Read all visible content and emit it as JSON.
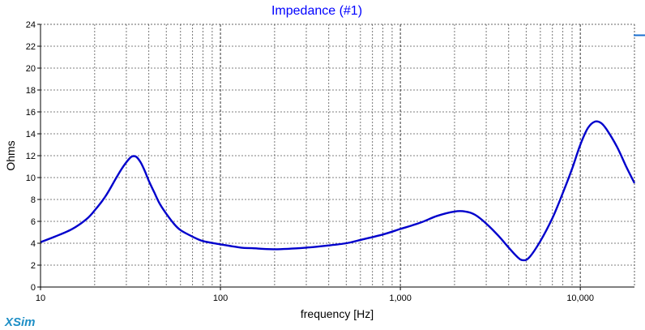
{
  "app": {
    "logo": "XSim"
  },
  "chart_data": {
    "type": "line",
    "title": "Impedance (#1)",
    "xlabel": "frequency [Hz]",
    "ylabel": "Ohms",
    "xscale": "log",
    "xlim": [
      10,
      20000
    ],
    "ylim": [
      0,
      24
    ],
    "grid": true,
    "x_ticks": [
      10,
      100,
      1000,
      10000
    ],
    "x_tick_labels": [
      "10",
      "100",
      "1,000",
      "10,000"
    ],
    "y_ticks": [
      0,
      2,
      4,
      6,
      8,
      10,
      12,
      14,
      16,
      18,
      20,
      22,
      24
    ],
    "y_tick_labels": [
      "0",
      "2",
      "4",
      "6",
      "8",
      "10",
      "12",
      "14",
      "16",
      "18",
      "20",
      "22",
      "24"
    ],
    "colors": {
      "title": "#0000ff",
      "series": "#0000cc",
      "grid": "#555555",
      "logo": "#1e8fc6"
    },
    "series": [
      {
        "x": [
          10,
          12,
          15,
          18,
          20,
          23,
          26,
          28,
          30,
          32,
          34,
          36,
          38,
          40,
          43,
          46,
          50,
          55,
          60,
          70,
          80,
          100,
          130,
          150,
          200,
          300,
          400,
          500,
          600,
          800,
          1000,
          1300,
          1600,
          2000,
          2300,
          2600,
          3000,
          3500,
          4000,
          4500,
          4800,
          5200,
          6000,
          7000,
          8000,
          9000,
          10000,
          11000,
          12000,
          13000,
          14000,
          16000,
          18000,
          20000
        ],
        "y": [
          4.1,
          4.6,
          5.3,
          6.2,
          7.0,
          8.3,
          9.8,
          10.7,
          11.4,
          11.9,
          11.9,
          11.4,
          10.6,
          9.7,
          8.6,
          7.6,
          6.7,
          5.8,
          5.2,
          4.6,
          4.2,
          3.9,
          3.6,
          3.55,
          3.45,
          3.6,
          3.8,
          4.0,
          4.3,
          4.8,
          5.3,
          5.9,
          6.5,
          6.9,
          6.9,
          6.6,
          5.8,
          4.7,
          3.6,
          2.7,
          2.45,
          2.7,
          4.2,
          6.3,
          8.6,
          10.8,
          13.0,
          14.5,
          15.1,
          15.0,
          14.4,
          12.8,
          11.0,
          9.5
        ]
      }
    ],
    "edge_marker_y": 23
  }
}
